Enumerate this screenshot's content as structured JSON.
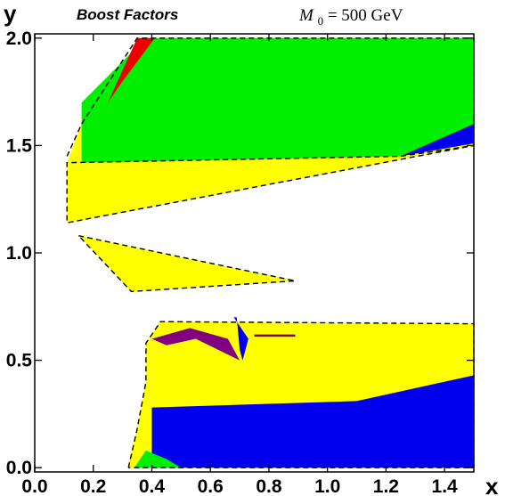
{
  "chart_data": {
    "type": "area",
    "title": "Boost Factors",
    "annotation": {
      "symbol": "M",
      "subscript": "0",
      "text": " = 500 GeV"
    },
    "xlabel": "x",
    "ylabel": "y",
    "xlim": [
      0.0,
      1.5
    ],
    "ylim": [
      -0.02,
      2.02
    ],
    "xticks": [
      "0.0",
      "0.2",
      "0.4",
      "0.6",
      "0.8",
      "1.0",
      "1.2",
      "1.4"
    ],
    "xtick_values": [
      0.0,
      0.2,
      0.4,
      0.6,
      0.8,
      1.0,
      1.2,
      1.4
    ],
    "yticks": [
      "0.0",
      "0.5",
      "1.0",
      "1.5",
      "2.0"
    ],
    "ytick_values": [
      0.0,
      0.5,
      1.0,
      1.5,
      2.0
    ],
    "colors": {
      "green": "#00ee00",
      "yellow": "#ffff00",
      "blue": "#0000ee",
      "red": "#ee0000",
      "purple": "#800080"
    },
    "regions": [
      {
        "color": "yellow",
        "points": [
          [
            0.11,
            1.42
          ],
          [
            0.16,
            1.6
          ],
          [
            0.38,
            2.0
          ],
          [
            1.5,
            2.0
          ],
          [
            1.5,
            1.5
          ],
          [
            0.11,
            1.14
          ]
        ]
      },
      {
        "color": "green",
        "points": [
          [
            0.16,
            1.42
          ],
          [
            0.16,
            1.7
          ],
          [
            0.38,
            2.0
          ],
          [
            1.5,
            2.0
          ],
          [
            1.5,
            1.55
          ],
          [
            1.25,
            1.45
          ],
          [
            0.16,
            1.42
          ]
        ]
      },
      {
        "color": "red",
        "points": [
          [
            0.25,
            1.7
          ],
          [
            0.35,
            2.0
          ],
          [
            0.41,
            2.0
          ],
          [
            0.3,
            1.8
          ]
        ]
      },
      {
        "color": "blue",
        "points": [
          [
            1.25,
            1.45
          ],
          [
            1.5,
            1.6
          ],
          [
            1.5,
            1.51
          ]
        ]
      },
      {
        "color": "yellow",
        "points": [
          [
            0.15,
            1.08
          ],
          [
            0.33,
            0.82
          ],
          [
            0.89,
            0.87
          ]
        ]
      },
      {
        "color": "yellow",
        "points": [
          [
            0.32,
            0.02
          ],
          [
            0.35,
            0.18
          ],
          [
            0.38,
            0.4
          ],
          [
            0.38,
            0.58
          ],
          [
            0.43,
            0.68
          ],
          [
            1.5,
            0.67
          ],
          [
            1.5,
            0.0
          ],
          [
            0.32,
            0.0
          ]
        ]
      },
      {
        "color": "blue",
        "points": [
          [
            0.4,
            0.28
          ],
          [
            1.1,
            0.31
          ],
          [
            1.5,
            0.43
          ],
          [
            1.5,
            0.0
          ],
          [
            0.4,
            0.0
          ]
        ]
      },
      {
        "color": "green",
        "points": [
          [
            0.34,
            0.0
          ],
          [
            0.38,
            0.08
          ],
          [
            0.45,
            0.04
          ],
          [
            0.5,
            0.0
          ]
        ]
      },
      {
        "color": "purple",
        "points": [
          [
            0.4,
            0.6
          ],
          [
            0.53,
            0.65
          ],
          [
            0.66,
            0.6
          ],
          [
            0.72,
            0.45
          ],
          [
            0.7,
            0.5
          ],
          [
            0.55,
            0.6
          ],
          [
            0.45,
            0.57
          ]
        ]
      },
      {
        "color": "blue",
        "points": [
          [
            0.68,
            0.7
          ],
          [
            0.73,
            0.6
          ],
          [
            0.71,
            0.5
          ],
          [
            0.7,
            0.55
          ],
          [
            0.69,
            0.7
          ]
        ]
      },
      {
        "color": "purple",
        "points": [
          [
            0.75,
            0.62
          ],
          [
            0.89,
            0.62
          ],
          [
            0.89,
            0.61
          ],
          [
            0.75,
            0.61
          ]
        ]
      }
    ],
    "boundaries": [
      [
        [
          0.11,
          1.45
        ],
        [
          0.16,
          1.6
        ],
        [
          0.35,
          2.0
        ],
        [
          1.5,
          2.0
        ],
        [
          1.5,
          1.5
        ],
        [
          1.25,
          1.45
        ],
        [
          0.11,
          1.42
        ],
        [
          0.11,
          1.14
        ],
        [
          1.5,
          1.5
        ]
      ],
      [
        [
          0.15,
          1.08
        ],
        [
          0.89,
          0.87
        ],
        [
          0.33,
          0.82
        ],
        [
          0.15,
          1.08
        ]
      ],
      [
        [
          0.32,
          0.0
        ],
        [
          0.35,
          0.18
        ],
        [
          0.38,
          0.4
        ],
        [
          0.38,
          0.58
        ],
        [
          0.43,
          0.68
        ],
        [
          1.5,
          0.67
        ],
        [
          1.5,
          0.0
        ],
        [
          0.32,
          0.0
        ]
      ]
    ]
  }
}
